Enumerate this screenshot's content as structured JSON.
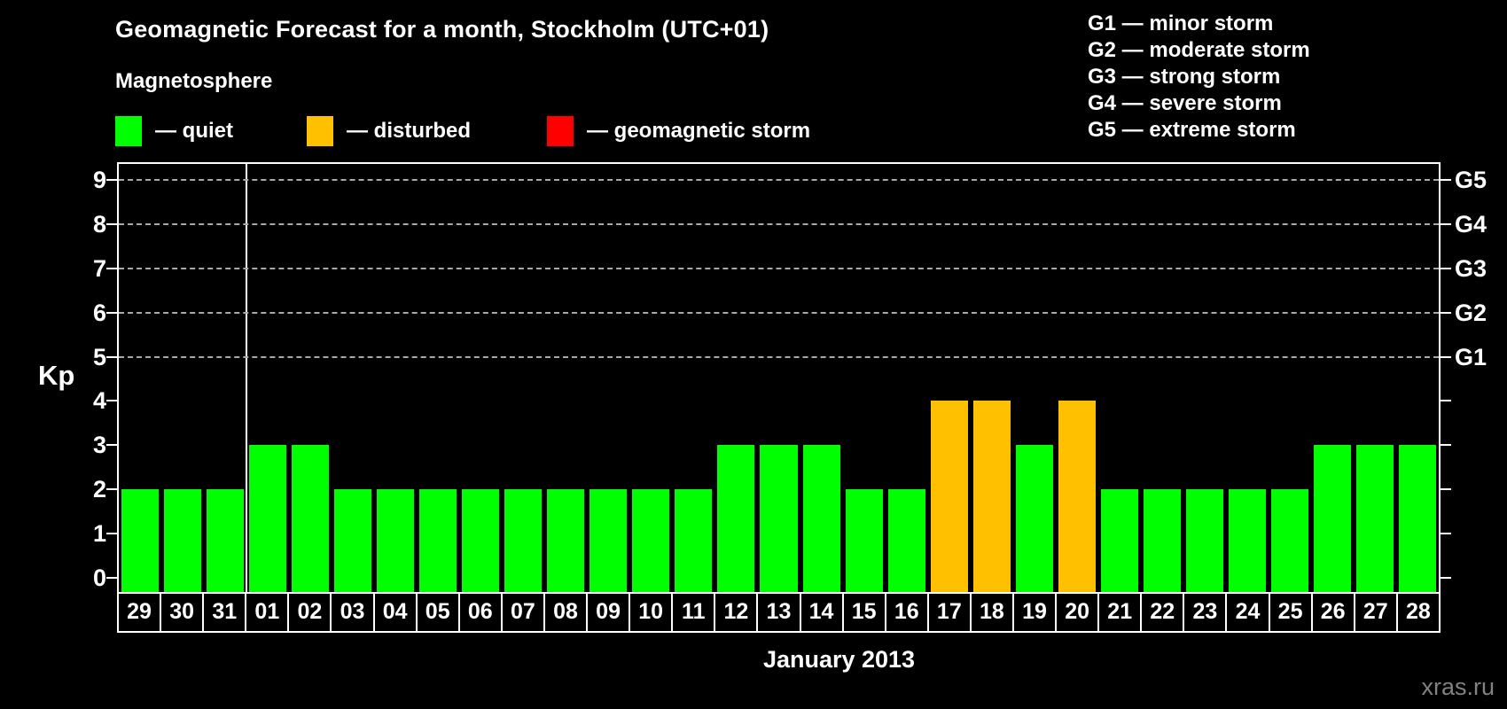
{
  "title": "Geomagnetic Forecast for a month, Stockholm (UTC+01)",
  "subtitle": "Magnetosphere",
  "legend": {
    "items": [
      {
        "key": "quiet",
        "label": "— quiet",
        "color": "#00ff00"
      },
      {
        "key": "disturbed",
        "label": "— disturbed",
        "color": "#ffc000"
      },
      {
        "key": "storm",
        "label": "— geomagnetic storm",
        "color": "#ff0000"
      }
    ]
  },
  "g_scale_legend": [
    "G1 — minor storm",
    "G2 — moderate storm",
    "G3 — strong storm",
    "G4 — severe storm",
    "G5 — extreme storm"
  ],
  "watermark": "xras.ru",
  "chart_data": {
    "type": "bar",
    "title": "Geomagnetic Forecast for a month, Stockholm (UTC+01)",
    "xlabel": "January 2013",
    "ylabel": "Kp",
    "ylim": [
      0,
      9
    ],
    "yticks": [
      0,
      1,
      2,
      3,
      4,
      5,
      6,
      7,
      8,
      9
    ],
    "grid": "horizontal dashed lines at Kp 5-9 (G1-G5 storm levels)",
    "gridlines_at_kp": [
      5,
      6,
      7,
      8,
      9
    ],
    "right_axis": [
      {
        "kp": 5,
        "label": "G1"
      },
      {
        "kp": 6,
        "label": "G2"
      },
      {
        "kp": 7,
        "label": "G3"
      },
      {
        "kp": 8,
        "label": "G4"
      },
      {
        "kp": 9,
        "label": "G5"
      }
    ],
    "legend_position": "top-left",
    "month_separator_after_index": 2,
    "categories": [
      "29",
      "30",
      "31",
      "01",
      "02",
      "03",
      "04",
      "05",
      "06",
      "07",
      "08",
      "09",
      "10",
      "11",
      "12",
      "13",
      "14",
      "15",
      "16",
      "17",
      "18",
      "19",
      "20",
      "21",
      "22",
      "23",
      "24",
      "25",
      "26",
      "27",
      "28"
    ],
    "values": [
      2,
      2,
      2,
      3,
      3,
      2,
      2,
      2,
      2,
      2,
      2,
      2,
      2,
      2,
      3,
      3,
      3,
      2,
      2,
      4,
      4,
      3,
      4,
      2,
      2,
      2,
      2,
      2,
      3,
      3,
      3
    ],
    "statuses": [
      "quiet",
      "quiet",
      "quiet",
      "quiet",
      "quiet",
      "quiet",
      "quiet",
      "quiet",
      "quiet",
      "quiet",
      "quiet",
      "quiet",
      "quiet",
      "quiet",
      "quiet",
      "quiet",
      "quiet",
      "quiet",
      "quiet",
      "disturbed",
      "disturbed",
      "quiet",
      "disturbed",
      "quiet",
      "quiet",
      "quiet",
      "quiet",
      "quiet",
      "quiet",
      "quiet",
      "quiet"
    ],
    "colors": {
      "quiet": "#00ff00",
      "disturbed": "#ffc000",
      "storm": "#ff0000"
    }
  }
}
